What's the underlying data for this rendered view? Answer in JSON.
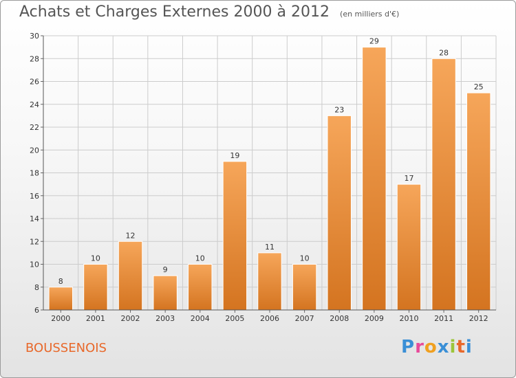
{
  "header": {
    "title": "Achats et Charges Externes 2000 à 2012",
    "unit": "(en milliers d'€)"
  },
  "footer": {
    "commune": "BOUSSENOIS",
    "logo_letters": [
      "P",
      "r",
      "o",
      "x",
      "i",
      "t",
      "i"
    ],
    "logo_colors": [
      "#3a8fd6",
      "#e84a9a",
      "#f0a020",
      "#3a8fd6",
      "#9cc53a",
      "#e8682a",
      "#3a8fd6"
    ]
  },
  "colors": {
    "bar_light": "#f6a65a",
    "bar_dark": "#d47420",
    "grid": "#cccccc",
    "commune": "#e8682a"
  },
  "chart_data": {
    "type": "bar",
    "title": "Achats et Charges Externes 2000 à 2012",
    "subtitle": "(en milliers d'€)",
    "categories": [
      "2000",
      "2001",
      "2002",
      "2003",
      "2004",
      "2005",
      "2006",
      "2007",
      "2008",
      "2009",
      "2010",
      "2011",
      "2012"
    ],
    "values": [
      8,
      10,
      12,
      9,
      10,
      19,
      11,
      10,
      23,
      29,
      17,
      28,
      25
    ],
    "ylim": [
      6,
      30
    ],
    "yticks": [
      6,
      8,
      10,
      12,
      14,
      16,
      18,
      20,
      22,
      24,
      26,
      28,
      30
    ],
    "grid": true,
    "data_labels": true
  }
}
